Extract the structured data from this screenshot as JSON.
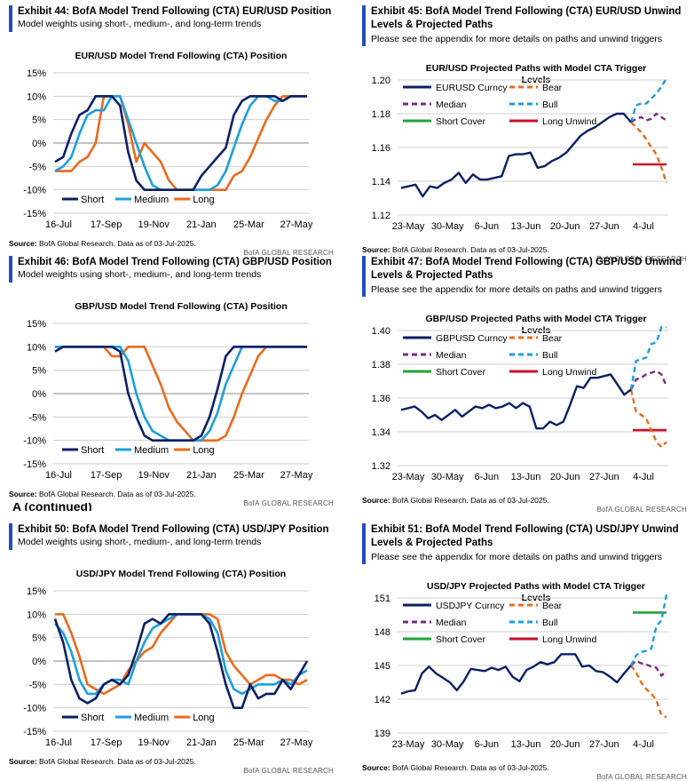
{
  "stray_header": "A (continued)",
  "source_note": "BofA Global Research.  Data as of 03-Jul-2025.",
  "source_label": "Source:",
  "brand": "BofA GLOBAL RESEARCH",
  "exhibits": [
    {
      "id": "ex44",
      "title": "Exhibit 44: BofA Model Trend Following (CTA) EUR/USD Position",
      "subtitle": "Model weights using short-, medium-, and long-term trends",
      "chart_data": {
        "type": "line",
        "title": "EUR/USD Model Trend Following (CTA) Position",
        "y_ticks": [
          "15%",
          "10%",
          "5%",
          "0%",
          "-5%",
          "-10%",
          "-15%"
        ],
        "ylim": [
          -15,
          15
        ],
        "x_ticks": [
          "16-Jul",
          "17-Sep",
          "19-Nov",
          "21-Jan",
          "25-Mar",
          "27-May"
        ],
        "legend_position": "bottom-left",
        "series": [
          {
            "name": "Short",
            "color": "#0b1f66",
            "values": [
              -4,
              -3,
              2,
              6,
              7,
              10,
              10,
              10,
              8,
              -2,
              -8,
              -10,
              -10,
              -10,
              -10,
              -10,
              -10,
              -10,
              -7,
              -5,
              -3,
              -1,
              6,
              9,
              10,
              10,
              10,
              10,
              9,
              10,
              10,
              10
            ]
          },
          {
            "name": "Medium",
            "color": "#1b9ee0",
            "values": [
              -6,
              -5,
              -3,
              2,
              6,
              7,
              7,
              10,
              10,
              5,
              0,
              -5,
              -9,
              -10,
              -10,
              -10,
              -10,
              -10,
              -10,
              -10,
              -9,
              -6,
              -1,
              4,
              8,
              10,
              10,
              9,
              9,
              10,
              10,
              10
            ]
          },
          {
            "name": "Long",
            "color": "#ec6a1c",
            "values": [
              -6,
              -6,
              -6,
              -4,
              -3,
              0,
              10,
              10,
              10,
              4,
              -4,
              0,
              -2,
              -4,
              -8,
              -10,
              -10,
              -10,
              -10,
              -10,
              -10,
              -10,
              -7,
              -6,
              -3,
              1,
              5,
              8,
              10,
              10,
              10,
              10
            ]
          }
        ]
      }
    },
    {
      "id": "ex45",
      "title": "Exhibit 45: BofA Model Trend Following (CTA) EUR/USD Unwind Levels & Projected Paths",
      "subtitle": "Please see the appendix for more details on paths and unwind triggers",
      "chart_data": {
        "type": "line",
        "title": "EUR/USD Projected Paths with Model CTA Trigger Levels",
        "y_ticks": [
          "1.20",
          "1.18",
          "1.16",
          "1.14",
          "1.12"
        ],
        "ylim": [
          1.12,
          1.2
        ],
        "x_ticks": [
          "23-May",
          "30-May",
          "6-Jun",
          "13-Jun",
          "20-Jun",
          "27-Jun",
          "4-Jul"
        ],
        "legend_position": "top-left",
        "series": [
          {
            "name": "EURUSD Curncy",
            "color": "#0b1f66",
            "style": "solid",
            "values": [
              1.136,
              1.137,
              1.138,
              1.131,
              1.137,
              1.136,
              1.139,
              1.141,
              1.145,
              1.139,
              1.144,
              1.141,
              1.141,
              1.142,
              1.143,
              1.155,
              1.156,
              1.156,
              1.157,
              1.148,
              1.149,
              1.152,
              1.154,
              1.157,
              1.162,
              1.167,
              1.17,
              1.172,
              1.175,
              1.178,
              1.18,
              1.18,
              1.175
            ]
          },
          {
            "name": "Bear",
            "color": "#ec6a1c",
            "style": "dashed",
            "values": [
              1.175,
              1.172,
              1.169,
              1.165,
              1.16,
              1.156,
              1.148,
              1.139
            ]
          },
          {
            "name": "Median",
            "color": "#7b2a86",
            "style": "dashed",
            "values": [
              1.175,
              1.177,
              1.178,
              1.176,
              1.177,
              1.18,
              1.178,
              1.176
            ]
          },
          {
            "name": "Bull",
            "color": "#1b9ee0",
            "style": "dashed",
            "values": [
              1.175,
              1.185,
              1.186,
              1.186,
              1.189,
              1.192,
              1.196,
              1.201
            ]
          },
          {
            "name": "Short Cover",
            "color": "#22a33a",
            "style": "solid",
            "values": []
          },
          {
            "name": "Long Unwind",
            "color": "#c8102e",
            "style": "solid",
            "level": 1.15
          }
        ]
      }
    },
    {
      "id": "ex46",
      "title": "Exhibit 46: BofA Model Trend Following (CTA) GBP/USD Position",
      "subtitle": "Model weights using short-, medium-, and long-term trends",
      "chart_data": {
        "type": "line",
        "title": "GBP/USD Model Trend Following (CTA) Position",
        "y_ticks": [
          "15%",
          "10%",
          "5%",
          "0%",
          "-5%",
          "-10%",
          "-15%"
        ],
        "ylim": [
          -15,
          15
        ],
        "x_ticks": [
          "16-Jul",
          "17-Sep",
          "19-Nov",
          "21-Jan",
          "25-Mar",
          "27-May"
        ],
        "legend_position": "bottom-left",
        "series": [
          {
            "name": "Short",
            "color": "#0b1f66",
            "values": [
              9,
              10,
              10,
              10,
              10,
              10,
              10,
              10,
              9,
              0,
              -5,
              -9,
              -10,
              -10,
              -10,
              -10,
              -10,
              -10,
              -9,
              -5,
              1,
              8,
              10,
              10,
              10,
              10,
              10,
              10,
              10,
              10,
              10,
              10
            ]
          },
          {
            "name": "Medium",
            "color": "#1b9ee0",
            "values": [
              10,
              10,
              10,
              10,
              10,
              10,
              10,
              10,
              10,
              7,
              0,
              -5,
              -8,
              -9,
              -10,
              -10,
              -10,
              -10,
              -10,
              -8,
              -4,
              2,
              6,
              10,
              10,
              10,
              10,
              10,
              10,
              10,
              10,
              10
            ]
          },
          {
            "name": "Long",
            "color": "#ec6a1c",
            "values": [
              10,
              10,
              10,
              10,
              10,
              10,
              10,
              8,
              8,
              10,
              10,
              10,
              6,
              2,
              -3,
              -6,
              -8,
              -10,
              -10,
              -10,
              -10,
              -9,
              -5,
              0,
              4,
              8,
              10,
              10,
              10,
              10,
              10,
              10
            ]
          }
        ]
      }
    },
    {
      "id": "ex47",
      "title": "Exhibit 47: BofA Model Trend Following (CTA) GBP/USD Unwind Levels & Projected Paths",
      "subtitle": "Please see the appendix for more details on paths and unwind triggers",
      "chart_data": {
        "type": "line",
        "title": "GBP/USD Projected Paths with Model CTA Trigger Levels",
        "y_ticks": [
          "1.40",
          "1.38",
          "1.36",
          "1.34",
          "1.32"
        ],
        "ylim": [
          1.32,
          1.4
        ],
        "x_ticks": [
          "23-May",
          "30-May",
          "6-Jun",
          "13-Jun",
          "20-Jun",
          "27-Jun",
          "4-Jul"
        ],
        "legend_position": "top-left",
        "series": [
          {
            "name": "GBPUSD Curncy",
            "color": "#0b1f66",
            "style": "solid",
            "values": [
              1.353,
              1.354,
              1.355,
              1.352,
              1.348,
              1.35,
              1.347,
              1.35,
              1.353,
              1.349,
              1.352,
              1.355,
              1.354,
              1.356,
              1.354,
              1.355,
              1.357,
              1.354,
              1.357,
              1.355,
              1.342,
              1.342,
              1.346,
              1.344,
              1.346,
              1.356,
              1.367,
              1.366,
              1.372,
              1.372,
              1.373,
              1.374,
              1.368,
              1.362,
              1.365
            ]
          },
          {
            "name": "Bear",
            "color": "#ec6a1c",
            "style": "dashed",
            "values": [
              1.365,
              1.352,
              1.35,
              1.348,
              1.341,
              1.334,
              1.331,
              1.334
            ]
          },
          {
            "name": "Median",
            "color": "#7b2a86",
            "style": "dashed",
            "values": [
              1.365,
              1.371,
              1.372,
              1.374,
              1.375,
              1.376,
              1.374,
              1.367
            ]
          },
          {
            "name": "Bull",
            "color": "#1b9ee0",
            "style": "dashed",
            "values": [
              1.365,
              1.382,
              1.383,
              1.384,
              1.392,
              1.393,
              1.402,
              1.402
            ]
          },
          {
            "name": "Short Cover",
            "color": "#22a33a",
            "style": "solid",
            "values": []
          },
          {
            "name": "Long Unwind",
            "color": "#c8102e",
            "style": "solid",
            "level": 1.341
          }
        ]
      }
    },
    {
      "id": "ex50",
      "title": "Exhibit 50: BofA Model Trend Following (CTA) USD/JPY Position",
      "subtitle": "Model weights using short-, medium-, and long-term trends",
      "chart_data": {
        "type": "line",
        "title": "USD/JPY Model Trend Following (CTA) Position",
        "y_ticks": [
          "15%",
          "10%",
          "5%",
          "0%",
          "-5%",
          "-10%",
          "-15%"
        ],
        "ylim": [
          -15,
          15
        ],
        "x_ticks": [
          "16-Jul",
          "17-Sep",
          "19-Nov",
          "21-Jan",
          "25-Mar",
          "27-May"
        ],
        "legend_position": "bottom-left",
        "series": [
          {
            "name": "Short",
            "color": "#0b1f66",
            "values": [
              9,
              4,
              -4,
              -8,
              -9,
              -8,
              -5,
              -4,
              -5,
              -3,
              2,
              8,
              9,
              8,
              10,
              10,
              10,
              10,
              10,
              8,
              2,
              -5,
              -10,
              -10,
              -5,
              -8,
              -7,
              -7,
              -4,
              -6,
              -3,
              0
            ]
          },
          {
            "name": "Medium",
            "color": "#1b9ee0",
            "values": [
              8,
              6,
              2,
              -4,
              -7,
              -7,
              -5,
              -4,
              -4,
              -5,
              0,
              4,
              7,
              8,
              9,
              10,
              10,
              10,
              10,
              9,
              6,
              -2,
              -6,
              -7,
              -6,
              -5,
              -5,
              -5,
              -4,
              -5,
              -3,
              -2
            ]
          },
          {
            "name": "Long",
            "color": "#ec6a1c",
            "values": [
              10,
              10,
              6,
              1,
              -5,
              -6,
              -7,
              -6,
              -5,
              -2,
              0,
              2,
              3,
              6,
              8,
              10,
              10,
              10,
              10,
              10,
              9,
              2,
              -1,
              -3,
              -5,
              -4,
              -3,
              -3,
              -4,
              -4,
              -5,
              -4
            ]
          }
        ]
      }
    },
    {
      "id": "ex51",
      "title": "Exhibit 51: BofA Model Trend Following (CTA) USD/JPY Unwind Levels & Projected Paths",
      "subtitle": "Please see the appendix for more details on paths and unwind triggers",
      "chart_data": {
        "type": "line",
        "title": "USD/JPY Projected Paths with Model CTA Trigger Levels",
        "y_ticks": [
          "151",
          "148",
          "145",
          "142",
          "139"
        ],
        "ylim": [
          139,
          151
        ],
        "x_ticks": [
          "23-May",
          "30-May",
          "6-Jun",
          "13-Jun",
          "20-Jun",
          "27-Jun",
          "4-Jul"
        ],
        "legend_position": "top-left",
        "series": [
          {
            "name": "USDJPY Curncy",
            "color": "#0b1f66",
            "style": "solid",
            "values": [
              142.5,
              142.7,
              142.8,
              144.3,
              144.9,
              144.3,
              143.9,
              143.5,
              142.8,
              143.6,
              144.7,
              144.6,
              144.5,
              144.8,
              144.6,
              144.9,
              144.0,
              143.6,
              144.6,
              144.9,
              145.3,
              145.1,
              145.3,
              146.0,
              146.0,
              146.0,
              144.9,
              145.0,
              144.5,
              144.4,
              144.0,
              143.5,
              144.3,
              145.0
            ]
          },
          {
            "name": "Bear",
            "color": "#ec6a1c",
            "style": "dashed",
            "values": [
              145.0,
              144.4,
              143.5,
              142.9,
              142.5,
              141.9,
              140.6,
              140.4
            ]
          },
          {
            "name": "Median",
            "color": "#7b2a86",
            "style": "dashed",
            "values": [
              145.0,
              145.4,
              145.2,
              145.1,
              144.9,
              144.8,
              144.1,
              144.5
            ]
          },
          {
            "name": "Bull",
            "color": "#1b9ee0",
            "style": "dashed",
            "values": [
              145.0,
              145.9,
              146.2,
              146.3,
              146.5,
              148.5,
              149.0,
              151.3
            ]
          },
          {
            "name": "Short Cover",
            "color": "#22a33a",
            "style": "solid",
            "level": 149.7
          },
          {
            "name": "Long Unwind",
            "color": "#c8102e",
            "style": "solid",
            "values": []
          }
        ]
      }
    }
  ]
}
